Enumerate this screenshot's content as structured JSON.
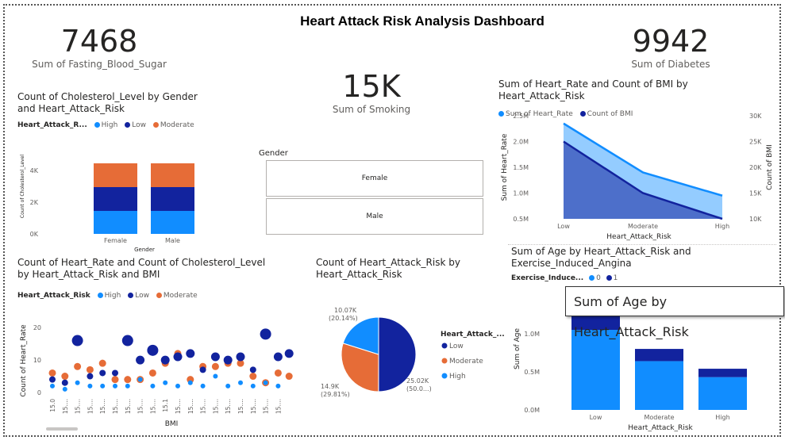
{
  "dashboard_title": "Heart Attack Risk Analysis Dashboard",
  "kpis": {
    "fasting": {
      "value": "7468",
      "label": "Sum of Fasting_Blood_Sugar"
    },
    "diabetes": {
      "value": "9942",
      "label": "Sum of Diabetes"
    },
    "smoking": {
      "value": "15K",
      "label": "Sum of Smoking"
    }
  },
  "colors": {
    "high": "#118DFF",
    "low": "#12239E",
    "moderate": "#E66C37",
    "heart_rate": "#118DFF",
    "bmi": "#12239E"
  },
  "slicer": {
    "title": "Gender",
    "options": [
      "Female",
      "Male"
    ]
  },
  "tooltip_text": "Sum of Age by Heart_Attack_Risk",
  "chart_data": [
    {
      "id": "cholesterol",
      "type": "bar",
      "stacked": true,
      "title": "Count of Cholesterol_Level by Gender and Heart_Attack_Risk",
      "legend_title": "Heart_Attack_R...",
      "categories": [
        "Female",
        "Male"
      ],
      "series": [
        {
          "name": "High",
          "values": [
            1450,
            1450
          ]
        },
        {
          "name": "Low",
          "values": [
            1500,
            1500
          ]
        },
        {
          "name": "Moderate",
          "values": [
            1500,
            1500
          ]
        }
      ],
      "xlabel": "Gender",
      "ylabel": "Count of Cholesterol_Level",
      "ylim": [
        0,
        5000
      ],
      "yticks": [
        "0K",
        "2K",
        "4K"
      ]
    },
    {
      "id": "hr_bmi",
      "type": "area",
      "title": "Sum of Heart_Rate and Count of BMI by Heart_Attack_Risk",
      "categories": [
        "Low",
        "Moderate",
        "High"
      ],
      "series": [
        {
          "name": "Sum of Heart_Rate",
          "axis": "left",
          "values": [
            2.35,
            1.4,
            0.95
          ]
        },
        {
          "name": "Count of BMI",
          "axis": "right",
          "values": [
            25000,
            15000,
            10000
          ]
        }
      ],
      "xlabel": "Heart_Attack_Risk",
      "ylabel": "Sum of Heart_Rate",
      "y2label": "Count of BMI",
      "ylim": [
        0.5,
        2.5
      ],
      "yticks": [
        "0.5M",
        "1.0M",
        "1.5M",
        "2.0M",
        "2.5M"
      ],
      "y2lim": [
        10000,
        30000
      ],
      "y2ticks": [
        "10K",
        "15K",
        "20K",
        "25K",
        "30K"
      ]
    },
    {
      "id": "scatter",
      "type": "scatter",
      "title": "Count of Heart_Rate and Count of Cholesterol_Level by Heart_Attack_Risk and BMI",
      "legend_title": "Heart_Attack_Risk",
      "categories": [
        "15.0",
        "15....",
        "15....",
        "15....",
        "15....",
        "15....",
        "15....",
        "15....",
        "15....",
        "15.1",
        "15....",
        "15....",
        "15....",
        "15....",
        "15....",
        "15....",
        "15....",
        "15....",
        "15...."
      ],
      "series": [
        {
          "name": "High",
          "values": [
            2,
            1,
            3,
            2,
            2,
            2,
            2,
            4,
            2,
            3,
            2,
            3,
            2,
            5,
            2,
            3,
            2,
            3,
            2
          ]
        },
        {
          "name": "Low",
          "values": [
            4,
            3,
            16,
            5,
            6,
            6,
            16,
            10,
            13,
            10,
            11,
            12,
            7,
            11,
            10,
            11,
            7,
            18,
            11
          ]
        },
        {
          "name": "Moderate",
          "values": [
            6,
            5,
            8,
            7,
            9,
            4,
            4,
            4,
            6,
            9,
            12,
            4,
            8,
            8,
            9,
            9,
            5,
            3,
            6
          ]
        }
      ],
      "series_extra": [
        {
          "name": "Low",
          "values": [
            0,
            0,
            0,
            0,
            0,
            0,
            0,
            0,
            0,
            0,
            0,
            0,
            0,
            0,
            0,
            0,
            0,
            0,
            12
          ]
        },
        {
          "name": "Moderate",
          "values": [
            0,
            0,
            0,
            0,
            0,
            0,
            0,
            0,
            0,
            0,
            0,
            0,
            0,
            0,
            0,
            0,
            0,
            0,
            5
          ]
        }
      ],
      "xlabel": "BMI",
      "ylabel": "Count of Heart_Rate",
      "ylim": [
        0,
        22
      ],
      "yticks": [
        "0",
        "10",
        "20"
      ]
    },
    {
      "id": "pie",
      "type": "pie",
      "title": "Count of Heart_Attack_Risk by Heart_Attack_Risk",
      "legend_title": "Heart_Attack_...",
      "slices": [
        {
          "name": "Low",
          "value": 25020,
          "label": "25.02K",
          "pct": "(50.0...)"
        },
        {
          "name": "Moderate",
          "value": 14900,
          "label": "14.9K",
          "pct": "(29.81%)"
        },
        {
          "name": "High",
          "value": 10070,
          "label": "10.07K",
          "pct": "(20.14%)"
        }
      ]
    },
    {
      "id": "age",
      "type": "bar",
      "stacked": true,
      "title": "Sum of Age by Heart_Attack_Risk and Exercise_Induced_Angina",
      "legend_title": "Exercise_Induce...",
      "categories": [
        "Low",
        "Moderate",
        "High"
      ],
      "series": [
        {
          "name": "0",
          "values": [
            1.05,
            0.64,
            0.43
          ]
        },
        {
          "name": "1",
          "values": [
            0.25,
            0.16,
            0.11
          ]
        }
      ],
      "xlabel": "Heart_Attack_Risk",
      "ylabel": "Sum of Age",
      "ylim": [
        0,
        1.3
      ],
      "yticks": [
        "0.0M",
        "0.5M",
        "1.0M"
      ]
    }
  ]
}
